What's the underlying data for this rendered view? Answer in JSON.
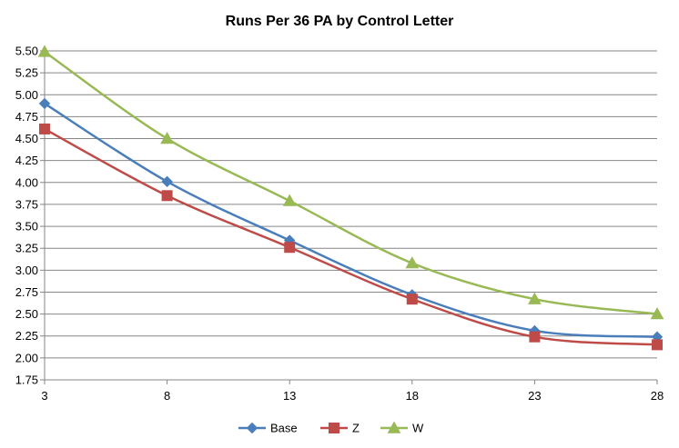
{
  "chart_data": {
    "type": "line",
    "title": "Runs Per 36 PA by Control Letter",
    "xlabel": "",
    "ylabel": "",
    "x": [
      3,
      8,
      13,
      18,
      23,
      28
    ],
    "xlim": [
      3,
      28
    ],
    "ylim": [
      1.75,
      5.5
    ],
    "ytick_step": 0.25,
    "grid": "horizontal",
    "legend_position": "bottom",
    "smooth": true,
    "series": [
      {
        "name": "Base",
        "marker": "diamond",
        "color": "#4a7ebb",
        "values": [
          4.9,
          4.01,
          3.34,
          2.72,
          2.31,
          2.24
        ]
      },
      {
        "name": "Z",
        "marker": "square",
        "color": "#be4b48",
        "values": [
          4.61,
          3.85,
          3.26,
          2.67,
          2.24,
          2.15
        ]
      },
      {
        "name": "W",
        "marker": "triangle",
        "color": "#98b954",
        "values": [
          5.49,
          4.5,
          3.79,
          3.08,
          2.67,
          2.5
        ]
      }
    ]
  }
}
